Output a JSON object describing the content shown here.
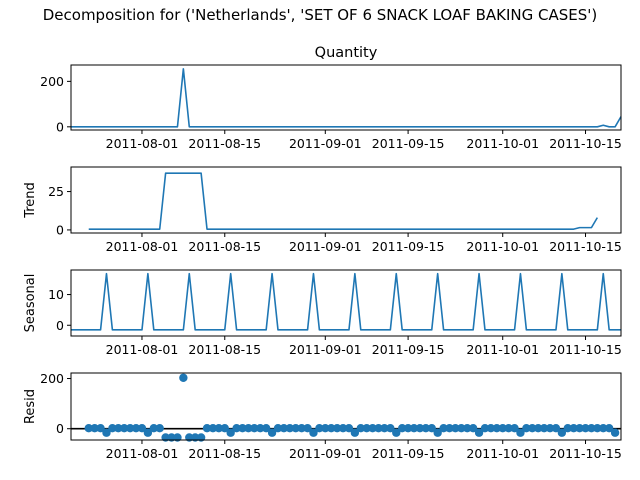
{
  "figure": {
    "title": "Decomposition for ('Netherlands', 'SET OF 6 SNACK LOAF BAKING CASES')",
    "line_color": "#1f77b4"
  },
  "chart_data": [
    {
      "type": "line",
      "panel": "observed",
      "title": "Quantity",
      "ylabel": "",
      "x_ticks": [
        "2011-08-01",
        "2011-08-15",
        "2011-09-01",
        "2011-09-15",
        "2011-10-01",
        "2011-10-15"
      ],
      "y_ticks": [
        0,
        200
      ],
      "xlim": [
        "2011-07-20",
        "2011-10-21"
      ],
      "ylim": [
        -14,
        272
      ],
      "x": [
        "2011-07-20",
        "2011-08-07",
        "2011-08-08",
        "2011-08-09",
        "2011-10-17",
        "2011-10-18",
        "2011-10-19",
        "2011-10-20",
        "2011-10-21"
      ],
      "y": [
        0,
        0,
        255,
        0,
        0,
        7,
        0,
        0,
        45
      ]
    },
    {
      "type": "line",
      "panel": "trend",
      "title": "",
      "ylabel": "Trend",
      "x_ticks": [
        "2011-08-01",
        "2011-08-15",
        "2011-09-01",
        "2011-09-15",
        "2011-10-01",
        "2011-10-15"
      ],
      "y_ticks": [
        0,
        25
      ],
      "xlim": [
        "2011-07-20",
        "2011-10-21"
      ],
      "ylim": [
        -2,
        41
      ],
      "x": [
        "2011-07-23",
        "2011-08-04",
        "2011-08-05",
        "2011-08-11",
        "2011-08-12",
        "2011-10-13",
        "2011-10-14",
        "2011-10-16",
        "2011-10-17"
      ],
      "y": [
        0.5,
        0.5,
        37,
        37,
        0.5,
        0.5,
        1.5,
        1.5,
        8
      ]
    },
    {
      "type": "line",
      "panel": "seasonal",
      "title": "",
      "ylabel": "Seasonal",
      "x_ticks": [
        "2011-08-01",
        "2011-08-15",
        "2011-09-01",
        "2011-09-15",
        "2011-10-01",
        "2011-10-15"
      ],
      "y_ticks": [
        0,
        10
      ],
      "xlim": [
        "2011-07-20",
        "2011-10-21"
      ],
      "ylim": [
        -3.5,
        18
      ],
      "period_days": 7,
      "peak_dates": [
        "2011-07-26",
        "2011-08-02",
        "2011-08-09",
        "2011-08-16",
        "2011-08-23",
        "2011-08-30",
        "2011-09-06",
        "2011-09-13",
        "2011-09-20",
        "2011-09-27",
        "2011-10-04",
        "2011-10-11",
        "2011-10-18"
      ],
      "peak_value": 16.8,
      "base_value": -1.5
    },
    {
      "type": "scatter",
      "panel": "resid",
      "title": "",
      "ylabel": "Resid",
      "x_ticks": [
        "2011-08-01",
        "2011-08-15",
        "2011-09-01",
        "2011-09-15",
        "2011-10-01",
        "2011-10-15"
      ],
      "y_ticks": [
        0,
        200
      ],
      "xlim": [
        "2011-07-20",
        "2011-10-21"
      ],
      "ylim": [
        -45,
        222
      ],
      "start_date": "2011-07-23",
      "end_date": "2011-10-20",
      "outlier": {
        "x": "2011-08-08",
        "y": 203
      },
      "low_points": [
        {
          "x": "2011-08-05",
          "y": -35
        },
        {
          "x": "2011-08-06",
          "y": -35
        },
        {
          "x": "2011-08-07",
          "y": -35
        },
        {
          "x": "2011-08-09",
          "y": -35
        },
        {
          "x": "2011-08-10",
          "y": -35
        },
        {
          "x": "2011-08-11",
          "y": -35
        }
      ],
      "dip_points": [
        {
          "x": "2011-07-26",
          "y": -16
        },
        {
          "x": "2011-08-02",
          "y": -16
        },
        {
          "x": "2011-08-16",
          "y": -16
        },
        {
          "x": "2011-08-23",
          "y": -16
        },
        {
          "x": "2011-08-30",
          "y": -16
        },
        {
          "x": "2011-09-06",
          "y": -16
        },
        {
          "x": "2011-09-13",
          "y": -16
        },
        {
          "x": "2011-09-20",
          "y": -16
        },
        {
          "x": "2011-09-27",
          "y": -16
        },
        {
          "x": "2011-10-04",
          "y": -16
        },
        {
          "x": "2011-10-11",
          "y": -16
        },
        {
          "x": "2011-10-20",
          "y": -16
        }
      ],
      "baseline_value": 2,
      "zero_line": true
    }
  ]
}
